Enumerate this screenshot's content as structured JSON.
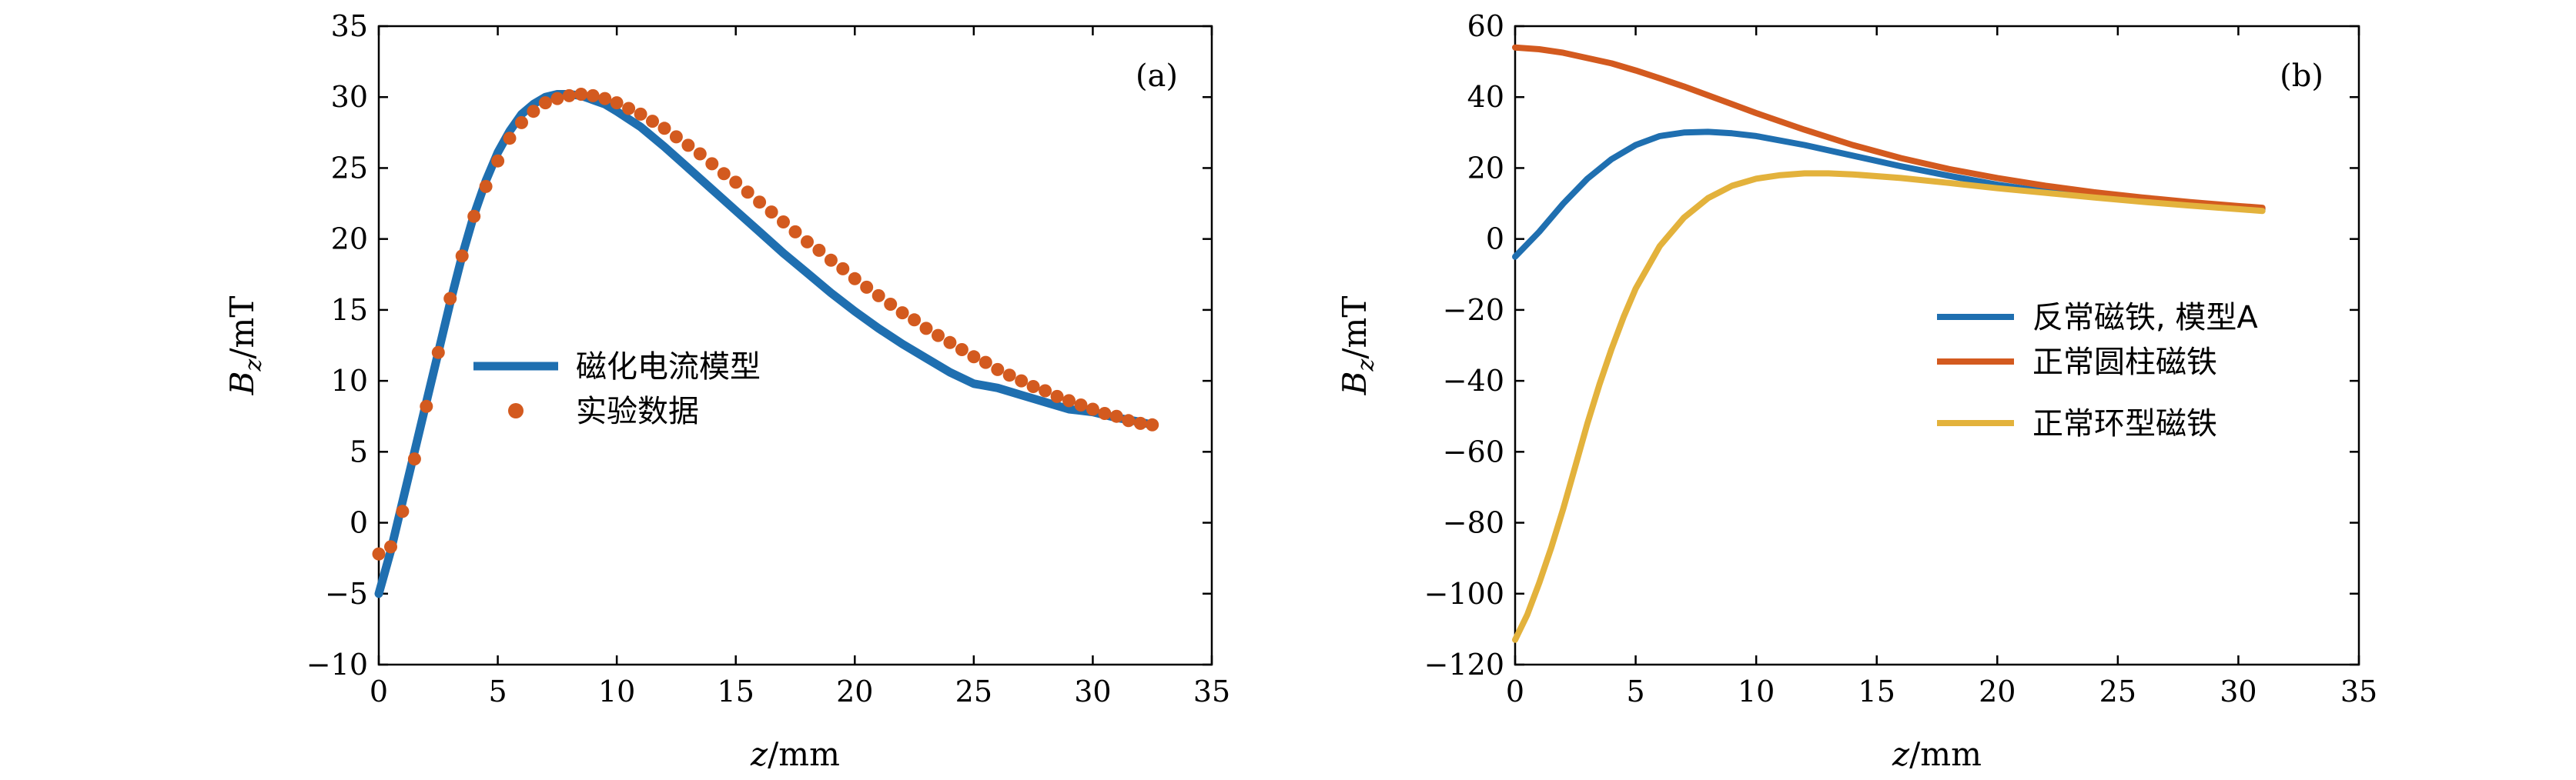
{
  "chart_data": [
    {
      "type": "line",
      "panel_label": "(a)",
      "xlabel": "z/mm",
      "ylabel": "Bz/mT",
      "xlim": [
        0,
        35
      ],
      "ylim": [
        -10,
        35
      ],
      "xticks": [
        0,
        5,
        10,
        15,
        20,
        25,
        30,
        35
      ],
      "yticks": [
        -10,
        -5,
        0,
        5,
        10,
        15,
        20,
        25,
        30,
        35
      ],
      "grid": false,
      "legend_position": "center-left",
      "series": [
        {
          "name": "磁化电流模型",
          "kind": "line",
          "color": "#1f6fb0",
          "x": [
            0,
            0.5,
            1,
            1.5,
            2,
            2.5,
            3,
            3.5,
            4,
            4.5,
            5,
            5.5,
            6,
            6.5,
            7,
            7.5,
            8,
            8.5,
            9,
            9.5,
            10,
            11,
            12,
            13,
            14,
            15,
            16,
            17,
            18,
            19,
            20,
            21,
            22,
            23,
            24,
            25,
            26,
            27,
            28,
            29,
            30,
            31,
            32,
            32.5
          ],
          "y": [
            -5,
            -2,
            1.5,
            5,
            8.5,
            12,
            15.5,
            18.8,
            21.7,
            24.1,
            26.1,
            27.6,
            28.8,
            29.5,
            30.0,
            30.2,
            30.2,
            30.1,
            29.8,
            29.5,
            29.0,
            27.9,
            26.5,
            25.0,
            23.5,
            22.0,
            20.5,
            19.0,
            17.6,
            16.2,
            14.9,
            13.7,
            12.6,
            11.6,
            10.6,
            9.8,
            9.5,
            9.0,
            8.5,
            8.0,
            7.8,
            7.4,
            7.1,
            6.9
          ]
        },
        {
          "name": "实验数据",
          "kind": "scatter",
          "color": "#d35a1f",
          "x": [
            0,
            0.5,
            1,
            1.5,
            2,
            2.5,
            3,
            3.5,
            4,
            4.5,
            5,
            5.5,
            6,
            6.5,
            7,
            7.5,
            8,
            8.5,
            9,
            9.5,
            10,
            10.5,
            11,
            11.5,
            12,
            12.5,
            13,
            13.5,
            14,
            14.5,
            15,
            15.5,
            16,
            16.5,
            17,
            17.5,
            18,
            18.5,
            19,
            19.5,
            20,
            20.5,
            21,
            21.5,
            22,
            22.5,
            23,
            23.5,
            24,
            24.5,
            25,
            25.5,
            26,
            26.5,
            27,
            27.5,
            28,
            28.5,
            29,
            29.5,
            30,
            30.5,
            31,
            31.5,
            32,
            32.5
          ],
          "y": [
            -2.2,
            -1.7,
            0.8,
            4.5,
            8.2,
            12.0,
            15.8,
            18.8,
            21.6,
            23.7,
            25.5,
            27.1,
            28.2,
            29.0,
            29.6,
            29.9,
            30.1,
            30.2,
            30.1,
            29.9,
            29.6,
            29.2,
            28.8,
            28.3,
            27.8,
            27.2,
            26.6,
            26.0,
            25.3,
            24.6,
            24.0,
            23.3,
            22.6,
            21.9,
            21.2,
            20.5,
            19.8,
            19.2,
            18.5,
            17.9,
            17.2,
            16.6,
            16.0,
            15.4,
            14.8,
            14.3,
            13.7,
            13.2,
            12.7,
            12.2,
            11.7,
            11.3,
            10.8,
            10.4,
            10.0,
            9.6,
            9.3,
            8.9,
            8.6,
            8.3,
            8.0,
            7.7,
            7.5,
            7.2,
            7.0,
            6.9
          ]
        }
      ]
    },
    {
      "type": "line",
      "panel_label": "(b)",
      "xlabel": "z/mm",
      "ylabel": "Bz/mT",
      "xlim": [
        0,
        35
      ],
      "ylim": [
        -120,
        60
      ],
      "xticks": [
        0,
        5,
        10,
        15,
        20,
        25,
        30,
        35
      ],
      "yticks": [
        -120,
        -100,
        -80,
        -60,
        -40,
        -20,
        0,
        20,
        40,
        60
      ],
      "grid": false,
      "legend_position": "center-right",
      "series": [
        {
          "name": "反常磁铁, 模型A",
          "kind": "line",
          "color": "#1f6fb0",
          "x": [
            0,
            1,
            2,
            3,
            4,
            5,
            6,
            7,
            8,
            9,
            10,
            12,
            14,
            16,
            18,
            20,
            22,
            24,
            26,
            28,
            30,
            31
          ],
          "y": [
            -5,
            2,
            10,
            17,
            22.5,
            26.5,
            29,
            30,
            30.2,
            29.8,
            29,
            26.5,
            23.5,
            20.5,
            17.8,
            15.3,
            13.4,
            11.8,
            10.6,
            9.7,
            8.8,
            8.4
          ]
        },
        {
          "name": "正常圆柱磁铁",
          "kind": "line",
          "color": "#d35a1f",
          "x": [
            0,
            1,
            2,
            3,
            4,
            5,
            6,
            7,
            8,
            9,
            10,
            12,
            14,
            16,
            18,
            20,
            22,
            24,
            26,
            28,
            30,
            31
          ],
          "y": [
            54,
            53.5,
            52.5,
            51,
            49.5,
            47.5,
            45.3,
            43,
            40.5,
            38,
            35.5,
            30.8,
            26.5,
            22.8,
            19.7,
            17.2,
            15.0,
            13.2,
            11.7,
            10.4,
            9.3,
            8.8
          ]
        },
        {
          "name": "正常环型磁铁",
          "kind": "line",
          "color": "#e3b23c",
          "x": [
            0,
            0.5,
            1,
            1.5,
            2,
            2.5,
            3,
            3.5,
            4,
            4.5,
            5,
            6,
            7,
            8,
            9,
            10,
            11,
            12,
            13,
            14,
            16,
            18,
            20,
            22,
            24,
            26,
            28,
            30,
            31
          ],
          "y": [
            -113,
            -106,
            -97,
            -87,
            -76,
            -64,
            -52,
            -41,
            -31,
            -22,
            -14,
            -2,
            6,
            11.5,
            15,
            17,
            18,
            18.5,
            18.5,
            18.2,
            17.2,
            15.8,
            14.3,
            13.0,
            11.7,
            10.5,
            9.4,
            8.4,
            7.9
          ]
        }
      ]
    }
  ]
}
